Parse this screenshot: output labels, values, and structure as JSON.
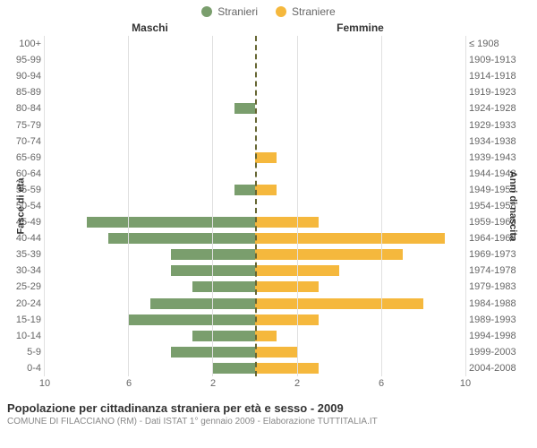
{
  "legend": {
    "male": {
      "label": "Stranieri",
      "color": "#7a9e6d"
    },
    "female": {
      "label": "Straniere",
      "color": "#f5b83d"
    }
  },
  "headers": {
    "maschi": "Maschi",
    "femmine": "Femmine"
  },
  "axis_labels": {
    "left": "Fasce di età",
    "right": "Anni di nascita"
  },
  "footer": {
    "title": "Popolazione per cittadinanza straniera per età e sesso - 2009",
    "subtitle": "COMUNE DI FILACCIANO (RM) - Dati ISTAT 1° gennaio 2009 - Elaborazione TUTTITALIA.IT"
  },
  "chart": {
    "type": "population-pyramid",
    "x_max": 10,
    "x_ticks": [
      10,
      6,
      2,
      2,
      6,
      10
    ],
    "grid_color": "#e0e0e0",
    "center_line_color": "#666633",
    "background_color": "#ffffff",
    "rows": [
      {
        "age": "100+",
        "birth": "≤ 1908",
        "m": 0,
        "f": 0
      },
      {
        "age": "95-99",
        "birth": "1909-1913",
        "m": 0,
        "f": 0
      },
      {
        "age": "90-94",
        "birth": "1914-1918",
        "m": 0,
        "f": 0
      },
      {
        "age": "85-89",
        "birth": "1919-1923",
        "m": 0,
        "f": 0
      },
      {
        "age": "80-84",
        "birth": "1924-1928",
        "m": 1,
        "f": 0
      },
      {
        "age": "75-79",
        "birth": "1929-1933",
        "m": 0,
        "f": 0
      },
      {
        "age": "70-74",
        "birth": "1934-1938",
        "m": 0,
        "f": 0
      },
      {
        "age": "65-69",
        "birth": "1939-1943",
        "m": 0,
        "f": 1
      },
      {
        "age": "60-64",
        "birth": "1944-1948",
        "m": 0,
        "f": 0
      },
      {
        "age": "55-59",
        "birth": "1949-1953",
        "m": 1,
        "f": 1
      },
      {
        "age": "50-54",
        "birth": "1954-1958",
        "m": 0,
        "f": 0
      },
      {
        "age": "45-49",
        "birth": "1959-1963",
        "m": 8,
        "f": 3
      },
      {
        "age": "40-44",
        "birth": "1964-1968",
        "m": 7,
        "f": 9
      },
      {
        "age": "35-39",
        "birth": "1969-1973",
        "m": 4,
        "f": 7
      },
      {
        "age": "30-34",
        "birth": "1974-1978",
        "m": 4,
        "f": 4
      },
      {
        "age": "25-29",
        "birth": "1979-1983",
        "m": 3,
        "f": 3
      },
      {
        "age": "20-24",
        "birth": "1984-1988",
        "m": 5,
        "f": 8
      },
      {
        "age": "15-19",
        "birth": "1989-1993",
        "m": 6,
        "f": 3
      },
      {
        "age": "10-14",
        "birth": "1994-1998",
        "m": 3,
        "f": 1
      },
      {
        "age": "5-9",
        "birth": "1999-2003",
        "m": 4,
        "f": 2
      },
      {
        "age": "0-4",
        "birth": "2004-2008",
        "m": 2,
        "f": 3
      }
    ]
  }
}
